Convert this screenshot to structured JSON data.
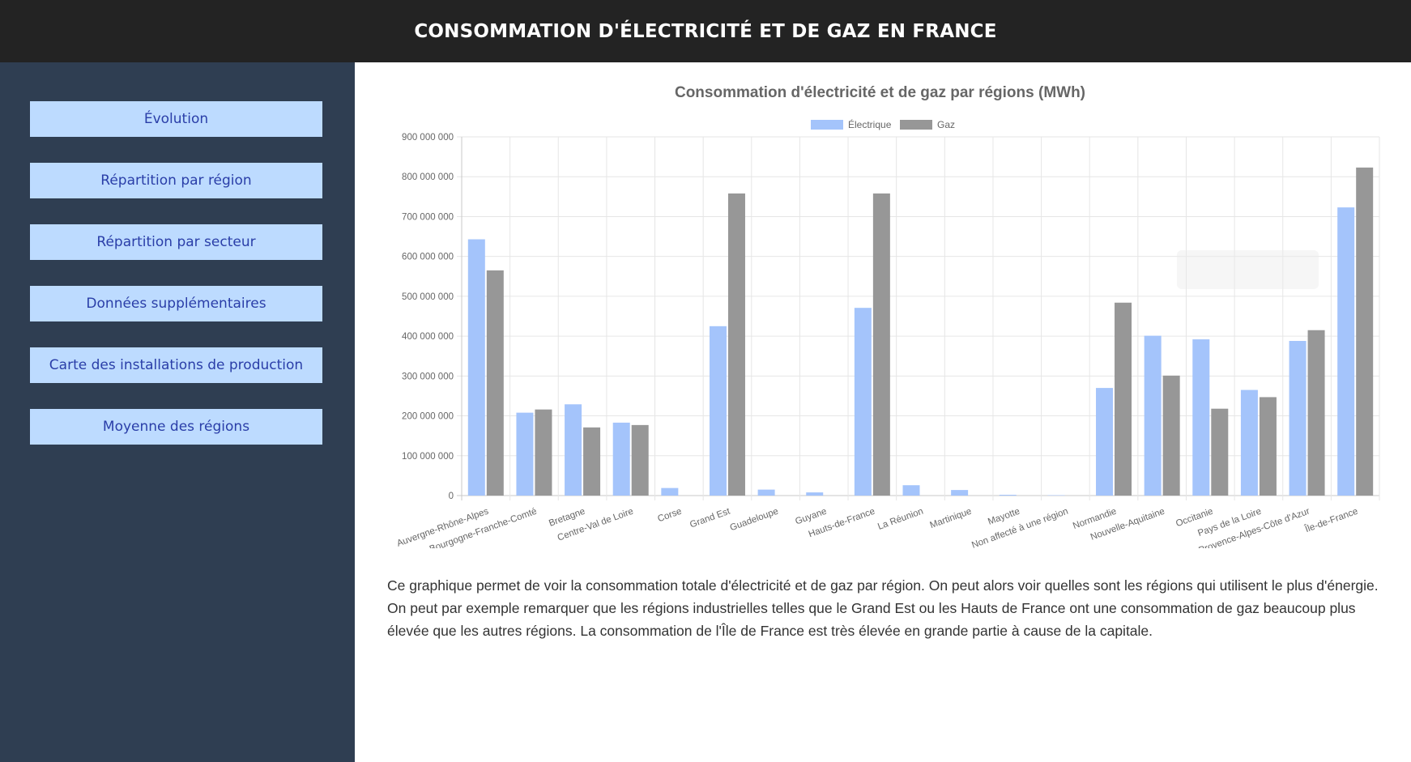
{
  "header": {
    "title": "CONSOMMATION D'ÉLECTRICITÉ ET DE GAZ EN FRANCE"
  },
  "sidebar": {
    "items": [
      {
        "label": "Évolution"
      },
      {
        "label": "Répartition par région"
      },
      {
        "label": "Répartition par secteur"
      },
      {
        "label": "Données supplémentaires"
      },
      {
        "label": "Carte des installations de production"
      },
      {
        "label": "Moyenne des régions"
      }
    ]
  },
  "chart_data": {
    "type": "bar",
    "title": "Consommation d'électricité et de gaz par régions (MWh)",
    "xlabel": "",
    "ylabel": "",
    "ylim": [
      0,
      900000000
    ],
    "yticks": [
      0,
      100000000,
      200000000,
      300000000,
      400000000,
      500000000,
      600000000,
      700000000,
      800000000,
      900000000
    ],
    "ytick_labels": [
      "0",
      "100 000 000",
      "200 000 000",
      "300 000 000",
      "400 000 000",
      "500 000 000",
      "600 000 000",
      "700 000 000",
      "800 000 000",
      "900 000 000"
    ],
    "grid": true,
    "legend_position": "top",
    "categories": [
      "Auvergne-Rhône-Alpes",
      "Bourgogne-Franche-Comté",
      "Bretagne",
      "Centre-Val de Loire",
      "Corse",
      "Grand Est",
      "Guadeloupe",
      "Guyane",
      "Hauts-de-France",
      "La Réunion",
      "Martinique",
      "Mayotte",
      "Non affecté à une région",
      "Normandie",
      "Nouvelle-Aquitaine",
      "Occitanie",
      "Pays de la Loire",
      "Provence-Alpes-Côte d'Azur",
      "Île-de-France"
    ],
    "series": [
      {
        "name": "Électrique",
        "color": "#a4c4fb",
        "values": [
          643000000,
          208000000,
          229000000,
          183000000,
          19000000,
          425000000,
          15000000,
          8000000,
          471000000,
          26000000,
          14000000,
          2000000,
          1000000,
          270000000,
          401000000,
          392000000,
          265000000,
          388000000,
          723000000
        ]
      },
      {
        "name": "Gaz",
        "color": "#979797",
        "values": [
          565000000,
          216000000,
          171000000,
          177000000,
          0,
          758000000,
          0,
          0,
          758000000,
          0,
          0,
          0,
          0,
          484000000,
          301000000,
          218000000,
          247000000,
          415000000,
          823000000
        ]
      }
    ]
  },
  "description": "Ce graphique permet de voir la consommation totale d'électricité et de gaz par région. On peut alors voir quelles sont les régions qui utilisent le plus d'énergie. On peut par exemple remarquer que les régions industrielles telles que le Grand Est ou les Hauts de France ont une consommation de gaz beaucoup plus élevée que les autres régions. La consommation de l'Île de France est très élevée en grande partie à cause de la capitale."
}
